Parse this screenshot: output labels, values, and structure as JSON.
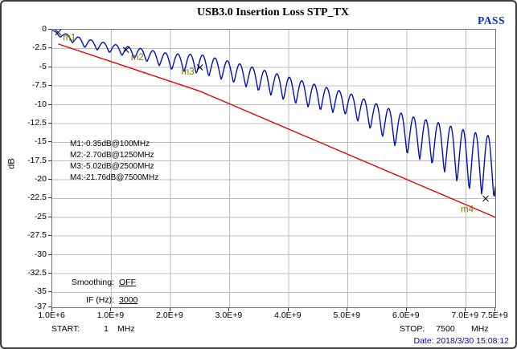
{
  "header": {
    "title": "USB3.0 Insertion Loss  STP_TX",
    "status": "PASS",
    "status_color": "#0033cc"
  },
  "axis": {
    "ylabel": "dB"
  },
  "chart_data": {
    "type": "line",
    "title": "USB3.0 Insertion Loss  STP_TX",
    "ylabel": "dB",
    "x_range_ghz": [
      0,
      7.5
    ],
    "y_range_db": [
      0,
      -37
    ],
    "grid": true,
    "x_ticks": [
      {
        "label": "1.0E+6",
        "ghz": 0.001
      },
      {
        "label": "1.0E+9",
        "ghz": 1.0
      },
      {
        "label": "2.0E+9",
        "ghz": 2.0
      },
      {
        "label": "3.0E+9",
        "ghz": 3.0
      },
      {
        "label": "4.0E+9",
        "ghz": 4.0
      },
      {
        "label": "5.0E+9",
        "ghz": 5.0
      },
      {
        "label": "6.0E+9",
        "ghz": 6.0
      },
      {
        "label": "7.0E+9",
        "ghz": 7.0
      },
      {
        "label": "7.5E+9",
        "ghz": 7.5
      }
    ],
    "y_ticks": [
      {
        "label": "0",
        "db": 0
      },
      {
        "label": "-2.5",
        "db": -2.5
      },
      {
        "label": "-5",
        "db": -5
      },
      {
        "label": "-7.5",
        "db": -7.5
      },
      {
        "label": "-10",
        "db": -10
      },
      {
        "label": "-12.5",
        "db": -12.5
      },
      {
        "label": "-15",
        "db": -15
      },
      {
        "label": "-17.5",
        "db": -17.5
      },
      {
        "label": "-20",
        "db": -20
      },
      {
        "label": "-22.5",
        "db": -22.5
      },
      {
        "label": "-25",
        "db": -25
      },
      {
        "label": "-27.5",
        "db": -27.5
      },
      {
        "label": "-30",
        "db": -30
      },
      {
        "label": "-32.5",
        "db": -32.5
      },
      {
        "label": "-35",
        "db": -35
      },
      {
        "label": "-37",
        "db": -37
      }
    ],
    "grid_x_ghz": [
      1,
      2,
      3,
      4,
      5,
      6,
      7
    ],
    "series": [
      {
        "name": "measured_insertion_loss",
        "color": "#0011bb",
        "ripple_period_ghz": 0.21,
        "ripple_dip_offset_ghz": 0.13,
        "ripple_sharpness": 1.3,
        "envelope_upper_ghz_db": [
          [
            0,
            -0.1
          ],
          [
            0.5,
            -1.1
          ],
          [
            1,
            -1.9
          ],
          [
            1.5,
            -2.5
          ],
          [
            2,
            -3.2
          ],
          [
            2.5,
            -3.3
          ],
          [
            3,
            -4.2
          ],
          [
            3.5,
            -5.2
          ],
          [
            4,
            -6.3
          ],
          [
            4.5,
            -7.4
          ],
          [
            5,
            -8.4
          ],
          [
            5.5,
            -9.9
          ],
          [
            6,
            -11.4
          ],
          [
            6.5,
            -12.3
          ],
          [
            7,
            -13.4
          ],
          [
            7.5,
            -14.3
          ]
        ],
        "envelope_lower_ghz_db": [
          [
            0,
            -0.5
          ],
          [
            0.5,
            -2.3
          ],
          [
            1,
            -3.1
          ],
          [
            1.5,
            -4.0
          ],
          [
            2,
            -5.3
          ],
          [
            2.5,
            -5.9
          ],
          [
            3,
            -6.9
          ],
          [
            3.5,
            -8.2
          ],
          [
            4,
            -9.6
          ],
          [
            4.5,
            -10.7
          ],
          [
            5,
            -11.4
          ],
          [
            5.5,
            -13.8
          ],
          [
            6,
            -16.6
          ],
          [
            6.5,
            -18.2
          ],
          [
            7,
            -21.2
          ],
          [
            7.5,
            -22.6
          ]
        ]
      },
      {
        "name": "limit_line",
        "color": "#ee0000",
        "points_ghz_db": [
          [
            0.1,
            -1.9
          ],
          [
            2.5,
            -8.2
          ],
          [
            7.5,
            -25.0
          ]
        ]
      }
    ],
    "markers": [
      {
        "label": "m1",
        "freq_mhz": 100,
        "db": -0.35,
        "readout": "M1:-0.35dB@100MHz"
      },
      {
        "label": "m2",
        "freq_mhz": 1250,
        "db": -2.7,
        "readout": "M2:-2.70dB@1250MHz"
      },
      {
        "label": "m3",
        "freq_mhz": 2500,
        "db": -5.02,
        "readout": "M3:-5.02dB@2500MHz"
      },
      {
        "label": "m4",
        "freq_mhz": 7500,
        "db": -21.76,
        "readout": "M4:-21.76dB@7500MHz"
      }
    ],
    "marker_label_color": "#767600",
    "grid_color": "#bdbdbd"
  },
  "readouts": {
    "marker_lines": [
      "M1:-0.35dB@100MHz",
      "M2:-2.70dB@1250MHz",
      "M3:-5.02dB@2500MHz",
      "M4:-21.76dB@7500MHz"
    ]
  },
  "settings": {
    "smoothing_label": "Smoothing:",
    "smoothing_value": "OFF",
    "if_label": "IF (Hz):",
    "if_value": "3000"
  },
  "footer": {
    "start_label": "START:",
    "start_value": "1",
    "start_unit": "MHz",
    "stop_label": "STOP:",
    "stop_value": "7500",
    "stop_unit": "MHz",
    "date": "Date: 2018/3/30 15:08:12",
    "date_color": "#0000cc"
  }
}
